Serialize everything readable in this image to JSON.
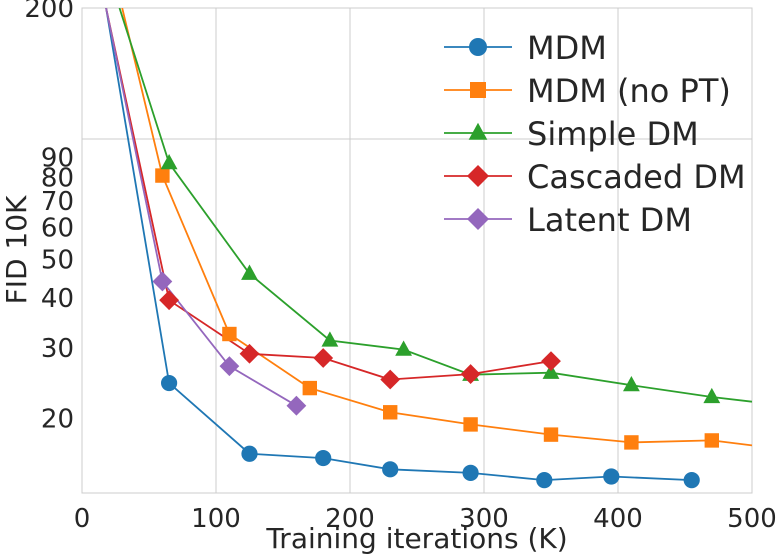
{
  "chart_data": {
    "type": "line",
    "title": "",
    "xlabel": "Training iterations (K)",
    "ylabel": "FID 10K",
    "xlim": [
      0,
      500
    ],
    "ylim": [
      13,
      200
    ],
    "yscale": "log",
    "grid": true,
    "legend_position": "top-right",
    "x_ticks": [
      0,
      100,
      200,
      300,
      400,
      500
    ],
    "x_tick_labels": [
      "0",
      "100",
      "200",
      "300",
      "400",
      "500"
    ],
    "y_ticks": [
      20,
      30,
      40,
      50,
      60,
      70,
      80,
      90,
      200
    ],
    "y_tick_labels": [
      "20",
      "30",
      "40",
      "50",
      "60",
      "70",
      "80",
      "90",
      "200"
    ],
    "series": [
      {
        "name": "MDM",
        "color": "#1f77b4",
        "marker": "circle",
        "line_x": [
          18,
          65,
          125,
          180,
          230,
          290,
          345,
          395,
          455
        ],
        "line_y": [
          200,
          24.5,
          16.3,
          15.9,
          14.9,
          14.6,
          14.0,
          14.3,
          14.0
        ],
        "x": [
          65,
          125,
          180,
          230,
          290,
          345,
          395,
          455
        ],
        "y": [
          24.5,
          16.3,
          15.9,
          14.9,
          14.6,
          14.0,
          14.3,
          14.0
        ]
      },
      {
        "name": "MDM (no PT)",
        "color": "#ff7f0e",
        "marker": "square",
        "line_x": [
          30,
          60,
          110,
          170,
          230,
          290,
          350,
          410,
          470,
          500
        ],
        "line_y": [
          200,
          81,
          32.5,
          23.8,
          20.7,
          19.3,
          18.2,
          17.4,
          17.6,
          17.1
        ],
        "x": [
          60,
          110,
          170,
          230,
          290,
          350,
          410,
          470
        ],
        "y": [
          81,
          32.5,
          23.8,
          20.7,
          19.3,
          18.2,
          17.4,
          17.6
        ]
      },
      {
        "name": "Simple DM",
        "color": "#2ca02c",
        "marker": "triangle",
        "line_x": [
          28,
          65,
          125,
          185,
          240,
          290,
          350,
          410,
          470,
          500
        ],
        "line_y": [
          200,
          87,
          46,
          31.3,
          29.7,
          25.7,
          26.0,
          24.2,
          22.6,
          22.0
        ],
        "x": [
          65,
          125,
          185,
          240,
          290,
          350,
          410,
          470
        ],
        "y": [
          87,
          46,
          31.3,
          29.7,
          25.7,
          26.0,
          24.2,
          22.6
        ]
      },
      {
        "name": "Cascaded DM",
        "color": "#d62728",
        "marker": "diamond",
        "line_x": [
          18,
          65,
          125,
          180,
          230,
          290,
          350
        ],
        "line_y": [
          200,
          39.5,
          29.0,
          28.3,
          25.0,
          25.8,
          27.8
        ],
        "x": [
          65,
          125,
          180,
          230,
          290,
          350
        ],
        "y": [
          39.5,
          29.0,
          28.3,
          25.0,
          25.8,
          27.8
        ]
      },
      {
        "name": "Latent DM",
        "color": "#9467bd",
        "marker": "diamond",
        "line_x": [
          18,
          60,
          110,
          160
        ],
        "line_y": [
          200,
          44,
          27.0,
          21.5
        ],
        "x": [
          60,
          110,
          160
        ],
        "y": [
          44,
          27.0,
          21.5
        ]
      }
    ]
  }
}
